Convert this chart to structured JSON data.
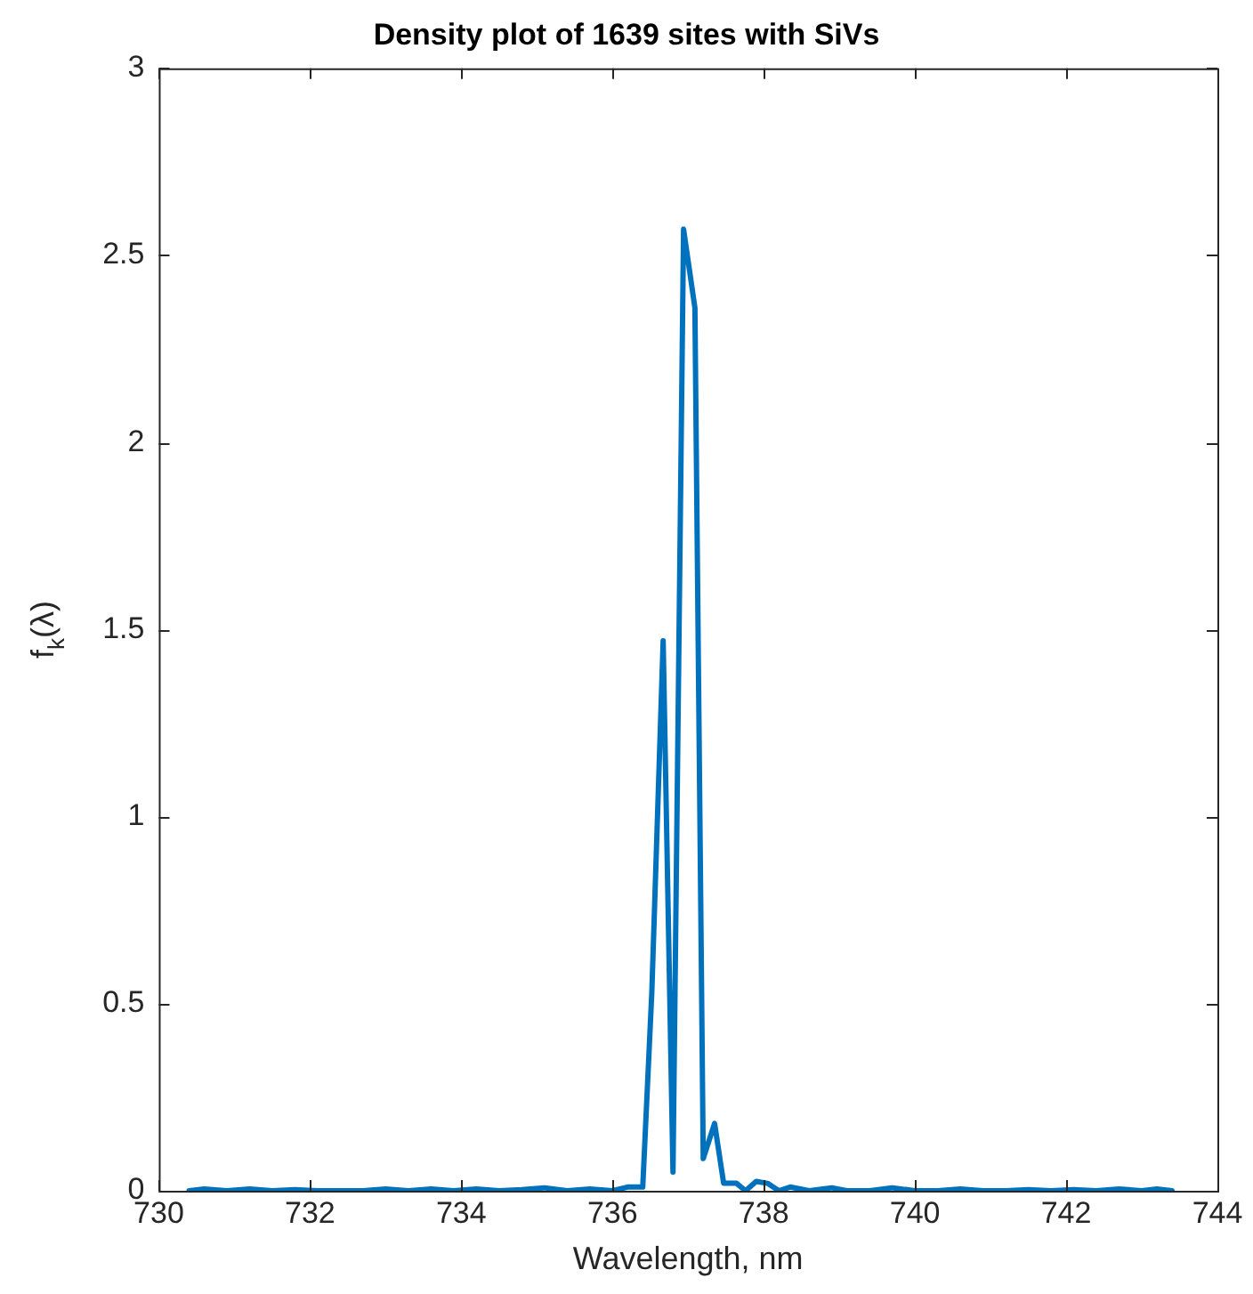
{
  "chart_data": {
    "type": "line",
    "title": "Density plot of 1639 sites with SiVs",
    "xlabel": "Wavelength, nm",
    "ylabel": "f$_{k}$(λ)",
    "xlim": [
      730,
      744
    ],
    "xticks": [
      730,
      732,
      734,
      736,
      738,
      740,
      742,
      744
    ],
    "ylim": [
      0,
      3
    ],
    "yticks": [
      0,
      0.5,
      1,
      1.5,
      2,
      2.5,
      3
    ],
    "grid": false,
    "legend": false,
    "marker": "none",
    "line_style": "solid",
    "series": [
      {
        "color": "#0072bd",
        "x": [
          730.4,
          730.6,
          730.9,
          731.2,
          731.5,
          731.8,
          732.1,
          732.4,
          732.7,
          733.0,
          733.3,
          733.6,
          733.9,
          734.2,
          734.5,
          734.8,
          735.1,
          735.4,
          735.7,
          736.0,
          736.2,
          736.4,
          736.52,
          736.67,
          736.8,
          736.94,
          737.09,
          737.2,
          737.35,
          737.47,
          737.64,
          737.76,
          737.9,
          738.05,
          738.2,
          738.35,
          738.6,
          738.9,
          739.1,
          739.4,
          739.7,
          740.0,
          740.3,
          740.6,
          740.9,
          741.2,
          741.5,
          741.8,
          742.1,
          742.4,
          742.7,
          743.0,
          743.2,
          743.4
        ],
        "values": [
          0.0,
          0.005,
          0.0,
          0.005,
          0.0,
          0.003,
          0.0,
          0.0,
          0.0,
          0.005,
          0.0,
          0.005,
          0.0,
          0.005,
          0.0,
          0.003,
          0.008,
          0.0,
          0.005,
          0.0,
          0.01,
          0.01,
          0.53,
          1.47,
          0.05,
          2.57,
          2.36,
          0.086,
          0.18,
          0.02,
          0.02,
          0.0,
          0.025,
          0.02,
          0.0,
          0.01,
          0.0,
          0.008,
          0.0,
          0.0,
          0.008,
          0.0,
          0.0,
          0.005,
          0.0,
          0.0,
          0.003,
          0.0,
          0.003,
          0.0,
          0.005,
          0.0,
          0.005,
          0.0
        ]
      }
    ]
  }
}
